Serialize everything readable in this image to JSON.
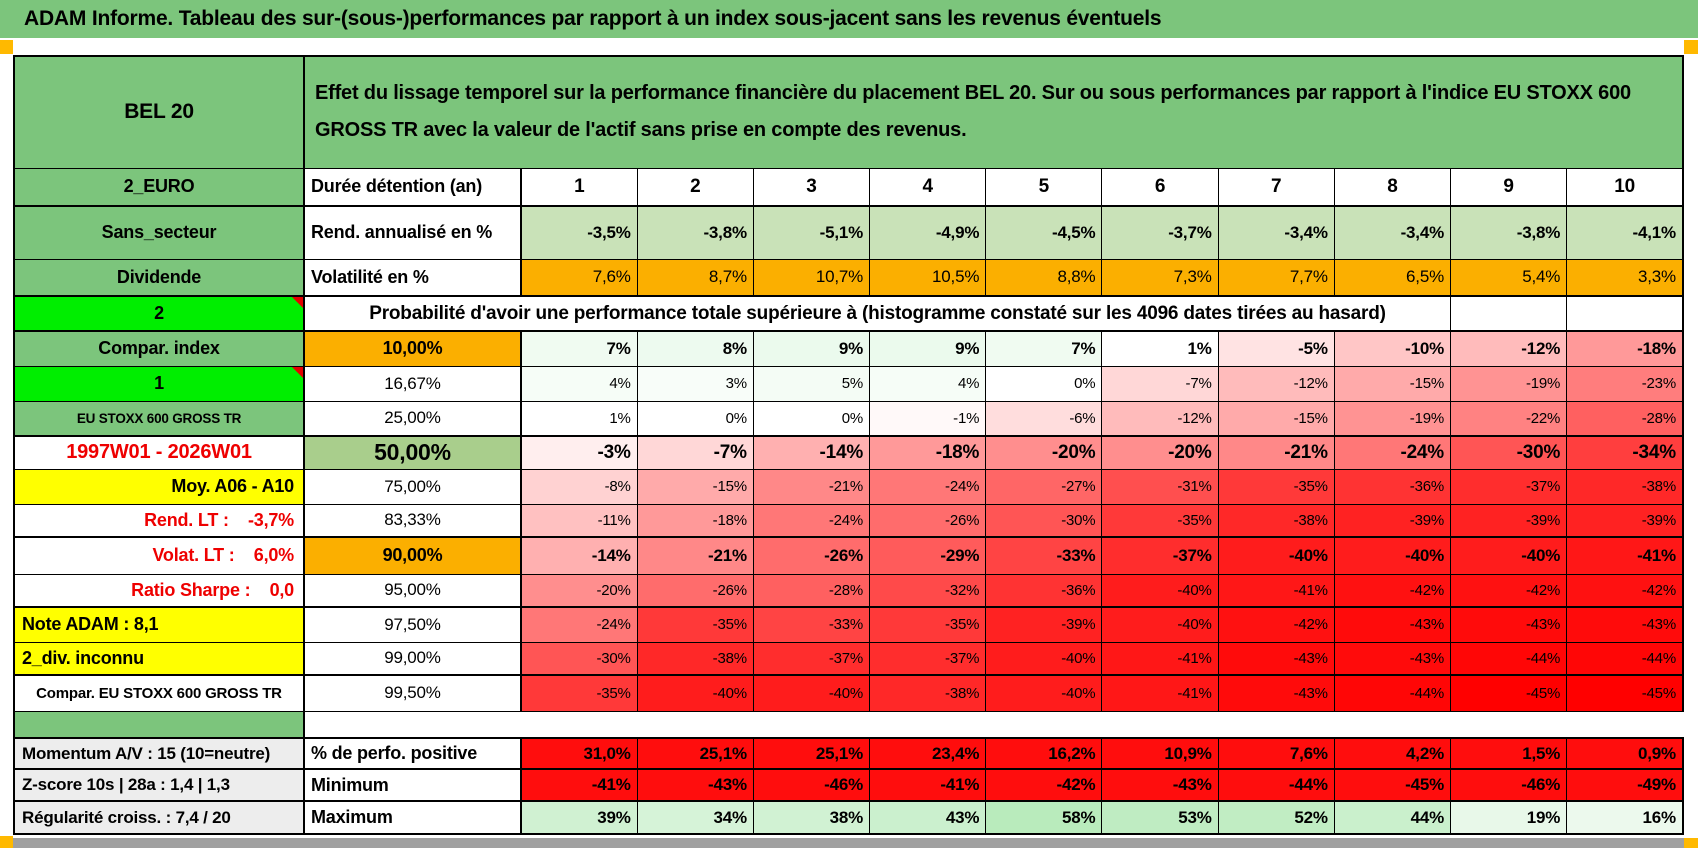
{
  "title": "ADAM Informe. Tableau des sur-(sous-)performances par rapport à un index sous-jacent sans les revenus éventuels",
  "panel": {
    "asset": "BEL 20",
    "description": "Effet du lissage temporel sur la performance financière du placement BEL 20. Sur ou sous performances par rapport à l'indice EU STOXX 600 GROSS TR avec la valeur de l'actif sans prise en compte des revenus."
  },
  "colors": {
    "header_green": "#7CC57C",
    "bright_green": "#00EE00",
    "orange": "#FBAF00",
    "light_green_50pct": "#A9CE8C",
    "return_row_green": "#C9E2B8",
    "yellow": "#FFFF00",
    "gray_label": "#EDEDED",
    "red_cell": "#FF0D0D",
    "red_text": "#EE0000",
    "marker_orange": "#FFB900"
  },
  "columns": [
    "1",
    "2",
    "3",
    "4",
    "5",
    "6",
    "7",
    "8",
    "9",
    "10"
  ],
  "table": {
    "rows": [
      {
        "name": "duration",
        "left": "2_EURO",
        "leftClass": "bg-green lbl",
        "mid": "Durée détention (an)",
        "midClass": "mid-hdr",
        "type": "colheads"
      },
      {
        "name": "annualized-return",
        "left": "Sans_secteur",
        "leftClass": "bg-green lbl",
        "mid": "Rend. annualisé en %",
        "midClass": "mid-hdr",
        "type": "rend",
        "values": [
          "-3,5%",
          "-3,8%",
          "-5,1%",
          "-4,9%",
          "-4,5%",
          "-3,7%",
          "-3,4%",
          "-3,4%",
          "-3,8%",
          "-4,1%"
        ]
      },
      {
        "name": "volatility",
        "left": "Dividende",
        "leftClass": "bg-green lbl",
        "mid": "Volatilité en %",
        "midClass": "mid-hdr",
        "type": "vol",
        "values": [
          "7,6%",
          "8,7%",
          "10,7%",
          "10,5%",
          "8,8%",
          "7,3%",
          "7,7%",
          "6,5%",
          "5,4%",
          "3,3%"
        ]
      },
      {
        "name": "probability-note",
        "left": "2",
        "leftClass": "bg-bright lbl",
        "note": true,
        "type": "span",
        "spanText": "Probabilité d'avoir une performance totale supérieure à (histogramme constaté sur les 4096 dates tirées au hasard)"
      },
      {
        "name": "p10",
        "left": "Compar. index",
        "leftClass": "bg-green lbl",
        "mid": "10,00%",
        "midClass": "bg-orange mid-pct-b",
        "type": "scale",
        "bold": true,
        "values": [
          7,
          8,
          9,
          9,
          7,
          1,
          -5,
          -10,
          -12,
          -18
        ]
      },
      {
        "name": "p16-67",
        "left": "1",
        "leftClass": "bg-bright lbl",
        "note": true,
        "mid": "16,67%",
        "midClass": "mid-pct",
        "type": "scale",
        "values": [
          4,
          3,
          5,
          4,
          0,
          -7,
          -12,
          -15,
          -19,
          -23
        ]
      },
      {
        "name": "p25",
        "left": "EU STOXX 600 GROSS TR",
        "leftClass": "bg-green lbl lbl-sm",
        "mid": "25,00%",
        "midClass": "mid-pct",
        "type": "scale",
        "values": [
          1,
          0,
          0,
          -1,
          -6,
          -12,
          -15,
          -19,
          -22,
          -28
        ]
      },
      {
        "name": "p50",
        "left": "1997W01 - 2026W01",
        "leftClass": "lbl lbl-lg txt-red",
        "mid": "50,00%",
        "midClass": "bg-lgreen mid-big",
        "type": "scale",
        "bold": true,
        "big": true,
        "values": [
          -3,
          -7,
          -14,
          -18,
          -20,
          -20,
          -21,
          -24,
          -30,
          -34
        ]
      },
      {
        "name": "p75",
        "left": "Moy. A06 - A10",
        "leftClass": "bg-yellow lbl al-r",
        "mid": "75,00%",
        "midClass": "mid-pct",
        "type": "scale",
        "values": [
          -8,
          -15,
          -21,
          -24,
          -27,
          -31,
          -35,
          -36,
          -37,
          -38
        ]
      },
      {
        "name": "p83-33",
        "left": "Rend. LT :    -3,7%",
        "leftClass": "lbl txt-red al-r pre",
        "mid": "83,33%",
        "midClass": "mid-pct",
        "type": "scale",
        "values": [
          -11,
          -18,
          -24,
          -26,
          -30,
          -35,
          -38,
          -39,
          -39,
          -39
        ]
      },
      {
        "name": "p90",
        "left": "Volat. LT :    6,0%",
        "leftClass": "lbl txt-red al-r pre",
        "mid": "90,00%",
        "midClass": "bg-orange mid-pct-b",
        "type": "scale",
        "bold": true,
        "values": [
          -14,
          -21,
          -26,
          -29,
          -33,
          -37,
          -40,
          -40,
          -40,
          -41
        ]
      },
      {
        "name": "p95",
        "left": "Ratio Sharpe :    0,0",
        "leftClass": "lbl txt-red al-r pre",
        "mid": "95,00%",
        "midClass": "mid-pct",
        "type": "scale",
        "values": [
          -20,
          -26,
          -28,
          -32,
          -36,
          -40,
          -41,
          -42,
          -42,
          -42
        ]
      },
      {
        "name": "p97-5",
        "left": "Note ADAM : 8,1",
        "leftClass": "bg-yellow lbl al-l",
        "mid": "97,50%",
        "midClass": "mid-pct",
        "type": "scale",
        "values": [
          -24,
          -35,
          -33,
          -35,
          -39,
          -40,
          -42,
          -43,
          -43,
          -43
        ]
      },
      {
        "name": "p99",
        "left": "2_div. inconnu",
        "leftClass": "bg-yellow lbl al-l",
        "mid": "99,00%",
        "midClass": "mid-pct",
        "type": "scale",
        "values": [
          -30,
          -38,
          -37,
          -37,
          -40,
          -41,
          -43,
          -43,
          -44,
          -44
        ]
      },
      {
        "name": "p99-5",
        "left": "Compar. EU STOXX 600 GROSS TR",
        "leftClass": "lbl lbl-sm2",
        "mid": "99,50%",
        "midClass": "mid-pct",
        "type": "scale",
        "values": [
          -35,
          -40,
          -40,
          -38,
          -40,
          -41,
          -43,
          -44,
          -45,
          -45
        ]
      },
      {
        "name": "positive-perf",
        "left": "Momentum A/V : 15 (10=neutre)",
        "leftClass": "bg-gray lbl-md al-l",
        "mid": "% de perfo. positive",
        "midClass": "mid-hdr",
        "type": "red",
        "values": [
          "31,0%",
          "25,1%",
          "25,1%",
          "23,4%",
          "16,2%",
          "10,9%",
          "7,6%",
          "4,2%",
          "1,5%",
          "0,9%"
        ]
      },
      {
        "name": "minimum",
        "left": "Z-score 10s | 28a : 1,4 | 1,3",
        "leftClass": "bg-gray lbl-md al-l",
        "mid": "Minimum",
        "midClass": "mid-hdr",
        "type": "red",
        "values": [
          "-41%",
          "-43%",
          "-46%",
          "-41%",
          "-42%",
          "-43%",
          "-44%",
          "-45%",
          "-46%",
          "-49%"
        ]
      },
      {
        "name": "maximum",
        "left": "Régularité croiss. : 7,4 / 20",
        "leftClass": "bg-gray lbl-md al-l",
        "mid": "Maximum",
        "midClass": "mid-hdr",
        "type": "greenscale",
        "values": [
          39,
          34,
          38,
          43,
          58,
          53,
          52,
          44,
          19,
          16
        ]
      }
    ]
  }
}
